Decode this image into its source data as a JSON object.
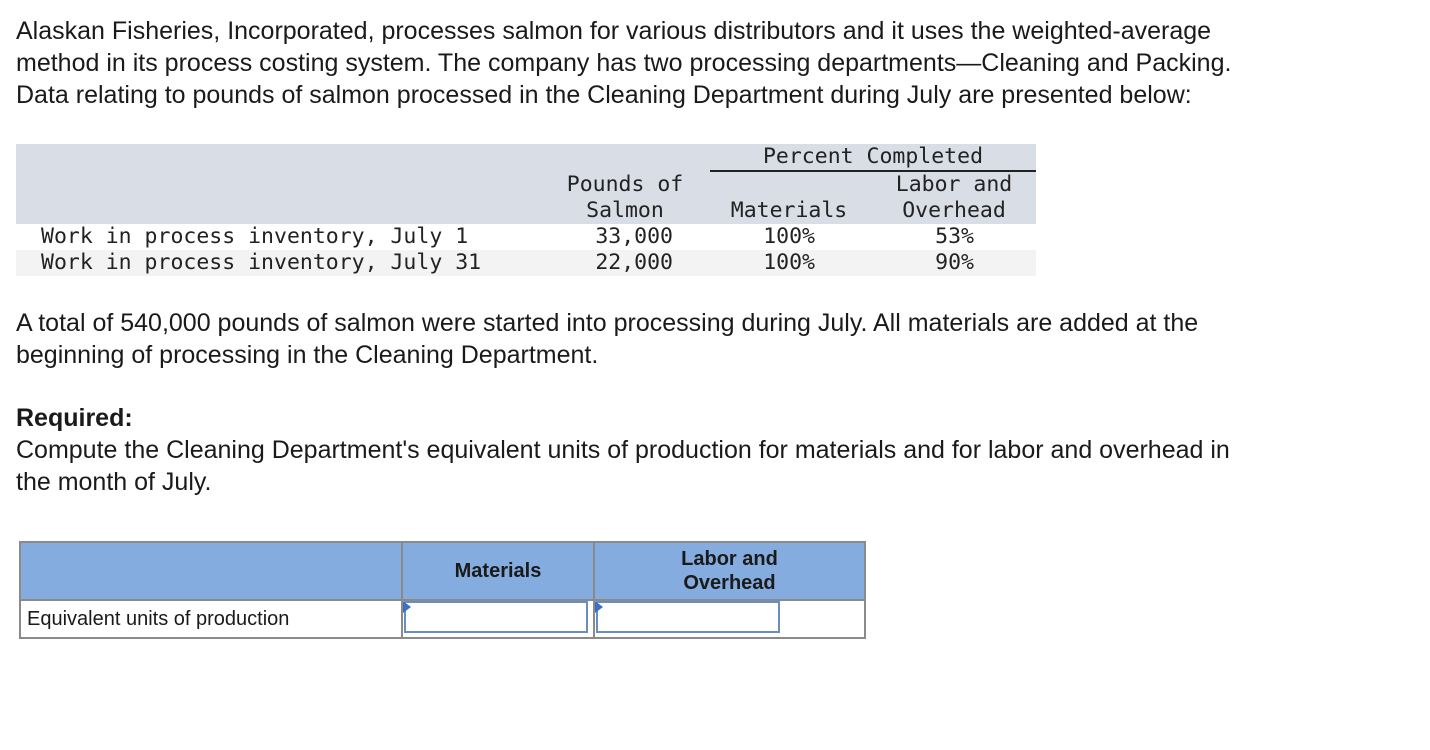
{
  "intro": [
    "Alaskan Fisheries, Incorporated, processes salmon for various distributors and it uses the weighted-average",
    "method in its process costing system. The company has two processing departments—Cleaning and Packing.",
    "Data relating to pounds of salmon processed in the Cleaning Department during July are presented below:"
  ],
  "data_table": {
    "group_header": "Percent Completed",
    "columns": [
      "Pounds of Salmon",
      "Materials",
      "Labor and Overhead"
    ],
    "rows": [
      [
        "Work in process inventory, July 1",
        "33,000",
        "100%",
        "53%"
      ],
      [
        "Work in process inventory, July 31",
        "22,000",
        "100%",
        "90%"
      ]
    ]
  },
  "paragraph": [
    "A total of 540,000 pounds of salmon were started into processing during July. All materials are added at the",
    "beginning of processing in the Cleaning Department."
  ],
  "required": {
    "label": "Required:",
    "text": [
      "Compute the Cleaning Department's equivalent units of production for materials and for labor and overhead in",
      "the month of July."
    ]
  },
  "answer_table": {
    "columns": [
      "Materials",
      "Labor and Overhead"
    ],
    "row_label": "Equivalent units of production"
  }
}
